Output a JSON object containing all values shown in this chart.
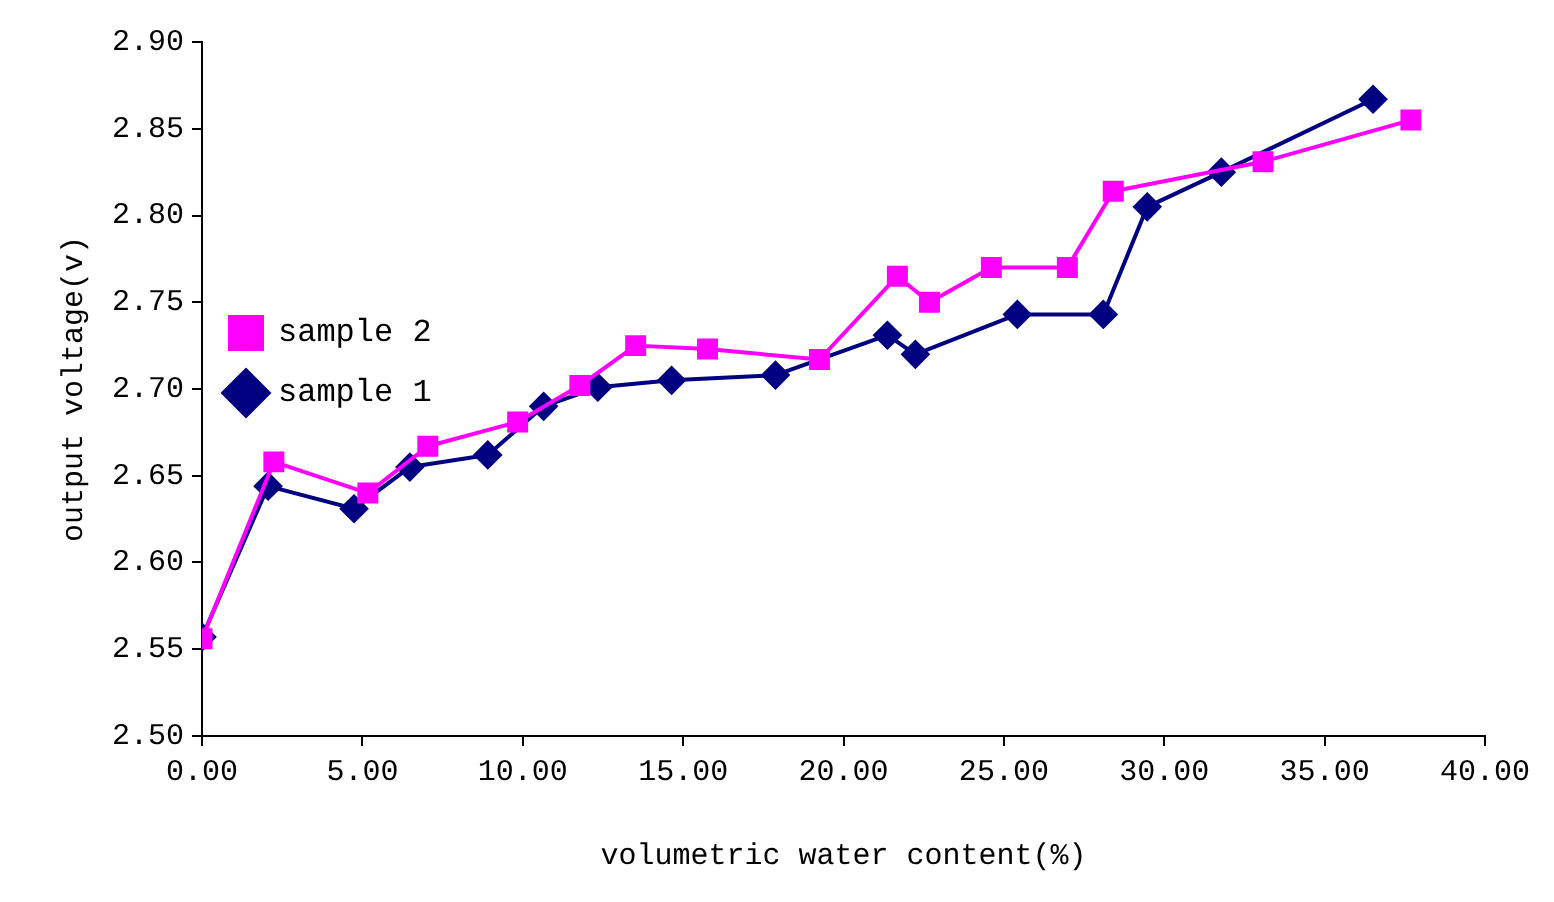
{
  "chart_data": {
    "type": "line",
    "xlabel": "volumetric water content(%)",
    "ylabel": "output voltage(v)",
    "xlim": [
      0,
      40
    ],
    "xticks": [
      {
        "value": 0,
        "label": "0.00"
      },
      {
        "value": 5,
        "label": "5.00"
      },
      {
        "value": 10,
        "label": "10.00"
      },
      {
        "value": 15,
        "label": "15.00"
      },
      {
        "value": 20,
        "label": "20.00"
      },
      {
        "value": 25,
        "label": "25.00"
      },
      {
        "value": 30,
        "label": "30.00"
      },
      {
        "value": 35,
        "label": "35.00"
      },
      {
        "value": 40,
        "label": "40.00"
      }
    ],
    "ylim": [
      2.5,
      2.9
    ],
    "yticks": [
      {
        "value": 2.5,
        "label": "2.50"
      },
      {
        "value": 2.55,
        "label": "2.55"
      },
      {
        "value": 2.6,
        "label": "2.60"
      },
      {
        "value": 2.65,
        "label": "2.65"
      },
      {
        "value": 2.7,
        "label": "2.70"
      },
      {
        "value": 2.75,
        "label": "2.75"
      },
      {
        "value": 2.8,
        "label": "2.80"
      },
      {
        "value": 2.85,
        "label": "2.85"
      },
      {
        "value": 2.9,
        "label": "2.90"
      }
    ],
    "grid": false,
    "legend": "top",
    "line_style": "solid",
    "series": [
      {
        "name": "sample 1",
        "color": "#000080",
        "marker": "diamond",
        "x": [
          0,
          2.06,
          4.74,
          6.48,
          8.91,
          10.65,
          12.34,
          14.64,
          17.88,
          21.37,
          22.24,
          25.42,
          28.1,
          29.47,
          31.78,
          36.51
        ],
        "values": [
          2.557,
          2.644,
          2.631,
          2.655,
          2.662,
          2.69,
          2.701,
          2.705,
          2.708,
          2.731,
          2.72,
          2.743,
          2.743,
          2.805,
          2.825,
          2.867
        ]
      },
      {
        "name": "sample 2",
        "color": "#ff00ff",
        "marker": "square",
        "x": [
          0,
          2.24,
          5.17,
          7.04,
          9.84,
          11.78,
          13.52,
          15.76,
          19.25,
          21.68,
          22.68,
          24.61,
          26.98,
          28.41,
          33.08,
          37.69
        ],
        "values": [
          2.556,
          2.658,
          2.64,
          2.667,
          2.681,
          2.702,
          2.725,
          2.723,
          2.717,
          2.765,
          2.75,
          2.77,
          2.77,
          2.814,
          2.831,
          2.855
        ]
      }
    ]
  }
}
